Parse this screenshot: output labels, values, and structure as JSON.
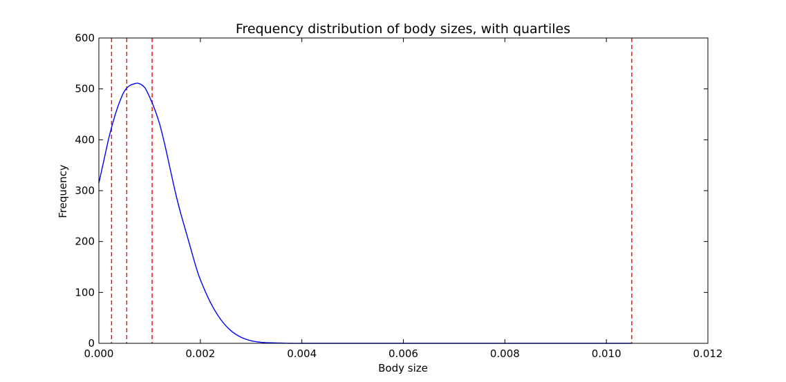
{
  "chart_data": {
    "type": "line",
    "title": "Frequency distribution of body sizes, with quartiles",
    "xlabel": "Body size",
    "ylabel": "Frequency",
    "xlim": [
      0.0,
      0.012
    ],
    "ylim": [
      0,
      600
    ],
    "grid": false,
    "x_ticks": [
      "0.000",
      "0.002",
      "0.004",
      "0.006",
      "0.008",
      "0.010",
      "0.012"
    ],
    "y_ticks": [
      "0",
      "100",
      "200",
      "300",
      "400",
      "500",
      "600"
    ],
    "series": [
      {
        "color": "#0000ff",
        "style": "solid",
        "x": [
          0.0,
          0.0001,
          0.0002,
          0.0003,
          0.0004,
          0.0005,
          0.0006,
          0.0007,
          0.00078,
          0.0009,
          0.001,
          0.0011,
          0.0012,
          0.0013,
          0.0014,
          0.0015,
          0.0016,
          0.0017,
          0.0018,
          0.0019,
          0.002,
          0.0022,
          0.0024,
          0.0026,
          0.0028,
          0.003,
          0.0032,
          0.0034,
          0.0036,
          0.0038,
          0.004,
          0.0045,
          0.005,
          0.006,
          0.007,
          0.008,
          0.009,
          0.0105
        ],
        "y": [
          315,
          360,
          405,
          442,
          472,
          495,
          506,
          510,
          511,
          503,
          484,
          460,
          430,
          390,
          345,
          300,
          260,
          225,
          190,
          155,
          125,
          80,
          47,
          25,
          12,
          5,
          2,
          1,
          0.5,
          0,
          0,
          0,
          0,
          0,
          0,
          0,
          0,
          0
        ]
      }
    ],
    "vlines": {
      "color": "#ff0000",
      "style": "dashed",
      "x": [
        0.00025,
        0.00055,
        0.00105,
        0.0105
      ]
    }
  }
}
